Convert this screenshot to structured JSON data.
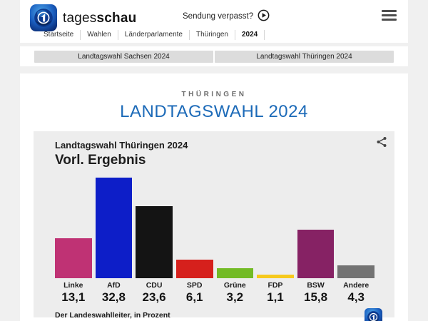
{
  "header": {
    "brand_regular": "tages",
    "brand_bold": "schau",
    "sendung_link": "Sendung verpasst?",
    "breadcrumb": [
      {
        "label": "Startseite",
        "active": false
      },
      {
        "label": "Wahlen",
        "active": false
      },
      {
        "label": "Länderparlamente",
        "active": false
      },
      {
        "label": "Thüringen",
        "active": false
      },
      {
        "label": "2024",
        "active": true
      }
    ]
  },
  "tabs": [
    {
      "label": "Landtagswahl Sachsen 2024"
    },
    {
      "label": "Landtagswahl Thüringen 2024"
    }
  ],
  "main": {
    "kicker": "THÜRINGEN",
    "title": "LANDTAGSWAHL 2024"
  },
  "chart_data": {
    "type": "bar",
    "title": "Landtagswahl Thüringen 2024",
    "subtitle": "Vorl. Ergebnis",
    "source": "Der Landeswahlleiter, in Prozent",
    "unit": "Prozent",
    "categories": [
      "Linke",
      "AfD",
      "CDU",
      "SPD",
      "Grüne",
      "FDP",
      "BSW",
      "Andere"
    ],
    "values": [
      13.1,
      32.8,
      23.6,
      6.1,
      3.2,
      1.1,
      15.8,
      4.3
    ],
    "value_labels": [
      "13,1",
      "32,8",
      "23,6",
      "6,1",
      "3,2",
      "1,1",
      "15,8",
      "4,3"
    ],
    "colors": [
      "#bf3274",
      "#0d1ec8",
      "#141414",
      "#d6201c",
      "#73bb26",
      "#f6c91c",
      "#862264",
      "#737373"
    ],
    "ylim": [
      0,
      33.5
    ],
    "grid": false,
    "legend": "none"
  },
  "theme": {
    "accent_blue": "#1c6ab8",
    "page_bg": "#f0f0f0",
    "card_bg": "#ededed",
    "tab_bg": "#dcdcdc"
  },
  "icons": {
    "logo": "tagesschau-globe-icon",
    "play": "play-icon",
    "menu": "hamburger-menu-icon",
    "share": "share-icon"
  }
}
